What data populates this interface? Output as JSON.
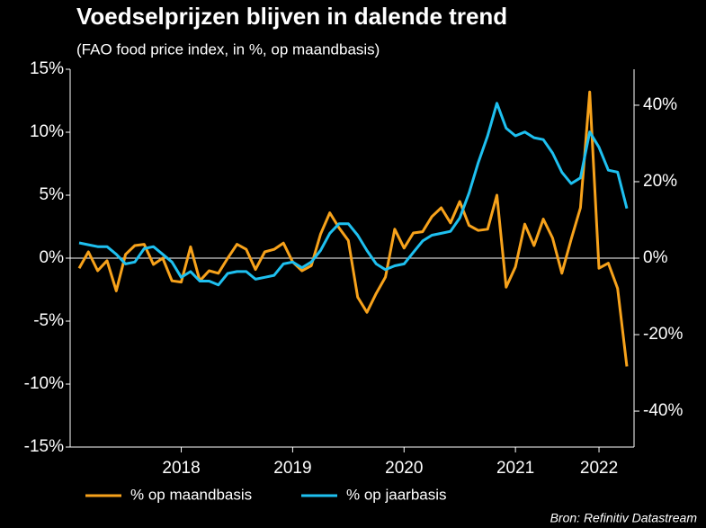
{
  "chart_data": {
    "type": "line",
    "title": "Voedselprijzen blijven in dalende trend",
    "subtitle": "(FAO food price index, in %, op maandbasis)",
    "source": "Bron: Refinitiv Datastream",
    "categories": [
      null,
      null,
      null,
      null,
      null,
      null,
      null,
      null,
      null,
      null,
      null,
      "2018",
      null,
      null,
      null,
      null,
      null,
      null,
      null,
      null,
      null,
      null,
      null,
      "2019",
      null,
      null,
      null,
      null,
      null,
      null,
      null,
      null,
      null,
      null,
      null,
      "2020",
      null,
      null,
      null,
      null,
      null,
      null,
      null,
      null,
      null,
      null,
      null,
      "2021",
      null,
      null,
      null,
      null,
      null,
      null,
      null,
      null,
      "2022",
      null,
      null,
      null
    ],
    "ylim": [
      -15,
      15
    ],
    "yticks": [
      {
        "value": -15,
        "label": "-15%"
      },
      {
        "value": -10,
        "label": "-10%"
      },
      {
        "value": -5,
        "label": "-5%"
      },
      {
        "value": 0,
        "label": "0%"
      },
      {
        "value": 5,
        "label": "5%"
      },
      {
        "value": 10,
        "label": "10%"
      },
      {
        "value": 15,
        "label": "15%"
      }
    ],
    "y2lim": [
      -49.4,
      49.4
    ],
    "y2ticks": [
      {
        "value": -40,
        "label": "-40%"
      },
      {
        "value": -20,
        "label": "-20%"
      },
      {
        "value": 0,
        "label": "0%"
      },
      {
        "value": 20,
        "label": "20%"
      },
      {
        "value": 40,
        "label": "40%"
      }
    ],
    "series": [
      {
        "name": "% op maandbasis",
        "color": "#f7a21b",
        "values": [
          -0.8,
          0.5,
          -1.0,
          -0.2,
          -2.6,
          0.3,
          1.0,
          1.1,
          -0.5,
          0.0,
          -1.8,
          -1.9,
          0.9,
          -1.8,
          -1.0,
          -1.2,
          0.0,
          1.1,
          0.7,
          -0.9,
          0.5,
          0.7,
          1.2,
          -0.3,
          -1.0,
          -0.6,
          1.9,
          3.6,
          2.4,
          1.4,
          -3.1,
          -4.3,
          -2.8,
          -1.5,
          2.3,
          0.8,
          2.0,
          2.1,
          3.3,
          4.0,
          2.8,
          4.5,
          2.6,
          2.2,
          2.3,
          5.0,
          -2.3,
          -0.7,
          2.7,
          1.0,
          3.1,
          1.6,
          -1.2,
          1.5,
          4.0,
          13.2,
          -0.8,
          -0.4,
          -2.4,
          -8.6
        ]
      },
      {
        "name": "% op jaarbasis",
        "color": "#1ec0f0",
        "axis": "y2",
        "values": [
          4,
          3.5,
          3,
          3,
          1,
          -1.5,
          -1,
          2.5,
          3,
          1,
          -1,
          -5,
          -3.5,
          -6,
          -6,
          -7,
          -4,
          -3.5,
          -3.5,
          -5.5,
          -5,
          -4.5,
          -1.5,
          -1,
          -2.5,
          -1,
          2,
          6.5,
          9,
          9,
          6,
          2,
          -1.5,
          -3,
          -2,
          -1.5,
          1.5,
          4.5,
          6,
          6.5,
          7,
          10.5,
          17,
          25,
          32,
          40.5,
          34,
          32,
          33,
          31.5,
          31,
          27.5,
          22.5,
          19.5,
          21,
          33,
          29,
          23,
          22.5,
          13
        ]
      }
    ]
  }
}
